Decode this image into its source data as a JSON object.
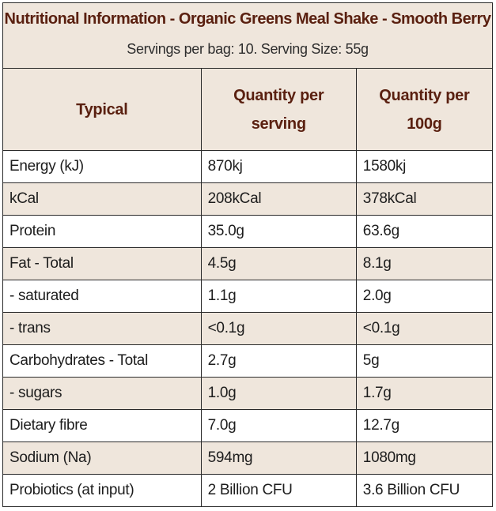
{
  "title": "Nutritional Information - Organic Greens Meal Shake - Smooth Berry",
  "subtitle": "Servings per bag: 10. Serving Size: 55g",
  "headers": [
    "Typical",
    "Quantity per serving",
    "Quantity per 100g"
  ],
  "rows": [
    [
      "Energy (kJ)",
      "870kj",
      "1580kj"
    ],
    [
      "kCal",
      "208kCal",
      "378kCal"
    ],
    [
      "Protein",
      "35.0g",
      "63.6g"
    ],
    [
      "Fat - Total",
      "4.5g",
      "8.1g"
    ],
    [
      "- saturated",
      "1.1g",
      "2.0g"
    ],
    [
      "- trans",
      "<0.1g",
      "<0.1g"
    ],
    [
      "Carbohydrates - Total",
      "2.7g",
      "5g"
    ],
    [
      "- sugars",
      "1.0g",
      "1.7g"
    ],
    [
      "Dietary fibre",
      "7.0g",
      "12.7g"
    ],
    [
      "Sodium (Na)",
      "594mg",
      "1080mg"
    ],
    [
      "Probiotics (at input)",
      "2 Billion CFU",
      "3.6 Billion CFU"
    ]
  ],
  "colors": {
    "header_bg": "#efe6dc",
    "title_text": "#5a2010",
    "border": "#2a2a2a"
  }
}
